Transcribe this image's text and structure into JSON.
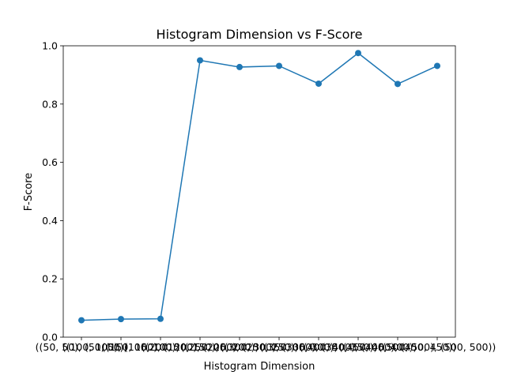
{
  "chart_data": {
    "type": "line",
    "title": "Histogram Dimension vs F-Score",
    "xlabel": "Histogram Dimension",
    "ylabel": "F-Score",
    "ylim": [
      0,
      1.0
    ],
    "yticks": [
      "0.0",
      "0.2",
      "0.4",
      "0.6",
      "0.8",
      "1.0"
    ],
    "grid": false,
    "legend": "none",
    "categories": [
      "((50, 50), (50, 50))",
      "((100, 100), (100, 100))",
      "((150, 150), (150, 150))",
      "((200, 200), (200, 200))",
      "((250, 250), (250, 250))",
      "((300, 300), (300, 300))",
      "((350, 350), (350, 350))",
      "((400, 400), (400, 400))",
      "((450, 450), (450, 450))",
      "((500, 500), (500, 500))"
    ],
    "values": [
      0.058,
      0.062,
      0.063,
      0.95,
      0.927,
      0.931,
      0.87,
      0.975,
      0.869,
      0.931
    ],
    "line_color": "#1f77b4"
  }
}
